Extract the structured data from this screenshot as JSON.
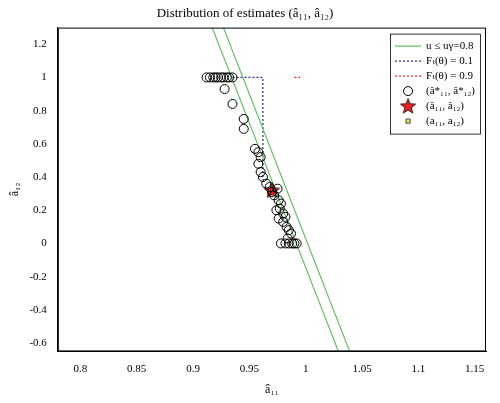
{
  "chart_data": {
    "type": "scatter",
    "title": "Distribution of estimates (â₁₁, â₁₂)",
    "x_label": "â₁₁",
    "y_label": "â₁₂",
    "xlim": [
      0.78,
      1.16
    ],
    "ylim": [
      -0.65,
      1.3
    ],
    "xticks": [
      0.8,
      0.85,
      0.9,
      0.95,
      1,
      1.05,
      1.1,
      1.15
    ],
    "yticks": [
      -0.6,
      -0.4,
      -0.2,
      0,
      0.2,
      0.4,
      0.6,
      0.8,
      1,
      1.2
    ],
    "grid": false,
    "legend": "upper right",
    "series": [
      {
        "name": "u ≤ uγ=0.8",
        "type": "line",
        "color": "#5cbf5c",
        "line_style": "solid",
        "x": [
          0.917,
          1.029,
          null,
          0.927,
          1.039
        ],
        "values": [
          1.3,
          -0.65,
          null,
          1.3,
          -0.65
        ]
      },
      {
        "name": "Fₜ(θ) = 0.1",
        "type": "line",
        "color": "#1f2a8a",
        "line_style": "dotted",
        "x": [
          0.935,
          0.962,
          0.962
        ],
        "values": [
          1.0,
          1.0,
          0.38
        ]
      },
      {
        "name": "Fₜ(θ) = 0.9",
        "type": "line",
        "color": "#e0211d",
        "line_style": "dotted",
        "x": [
          0.99,
          0.995
        ],
        "values": [
          1.0,
          1.0
        ]
      },
      {
        "name": "(â*₁₁, â*₁₂)",
        "type": "scatter",
        "color": "#000000",
        "marker": "circle",
        "x": [
          0.912,
          0.915,
          0.918,
          0.92,
          0.922,
          0.925,
          0.927,
          0.93,
          0.932,
          0.935,
          0.928,
          0.935,
          0.945,
          0.945,
          0.955,
          0.958,
          0.96,
          0.958,
          0.96,
          0.962,
          0.965,
          0.968,
          0.97,
          0.972,
          0.975,
          0.976,
          0.978,
          0.977,
          0.98,
          0.982,
          0.98,
          0.983,
          0.985,
          0.987,
          0.984,
          0.978,
          0.982,
          0.985,
          0.988,
          0.99,
          0.992,
          0.976,
          0.974
        ],
        "values": [
          1.0,
          1.0,
          1.0,
          1.0,
          1.0,
          1.0,
          1.0,
          1.0,
          1.0,
          1.0,
          0.93,
          0.84,
          0.75,
          0.69,
          0.57,
          0.55,
          0.52,
          0.48,
          0.43,
          0.4,
          0.36,
          0.34,
          0.31,
          0.29,
          0.33,
          0.26,
          0.24,
          0.21,
          0.18,
          0.16,
          0.13,
          0.1,
          0.08,
          0.06,
          0.03,
          0.0,
          0.0,
          0.0,
          0.0,
          0.0,
          0.0,
          0.15,
          0.2
        ]
      },
      {
        "name": "(â₁₁, â₁₂)",
        "type": "scatter",
        "color": "#e8231f",
        "marker": "star",
        "x": [
          0.97
        ],
        "values": [
          0.32
        ]
      },
      {
        "name": "(a₁₁, a₁₂)",
        "type": "scatter",
        "color": "#e6e04a",
        "marker": "square",
        "x": [
          0.971
        ],
        "values": [
          0.325
        ]
      }
    ]
  }
}
